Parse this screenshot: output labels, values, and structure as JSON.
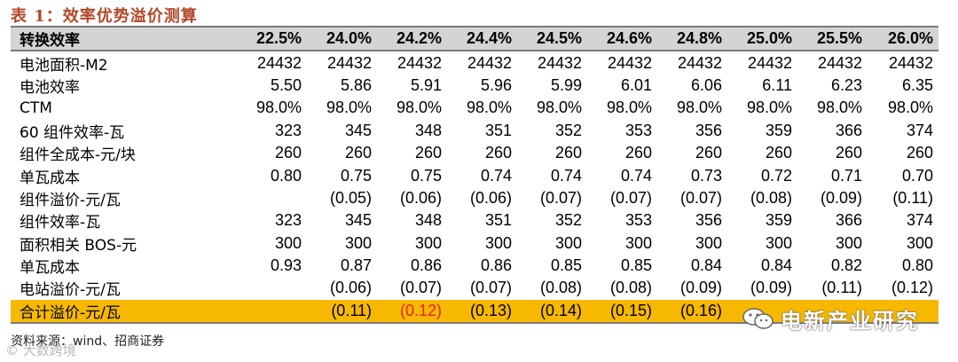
{
  "title": "表 1：效率优势溢价测算",
  "header": {
    "label": "转换效率",
    "columns": [
      "22.5%",
      "24.0%",
      "24.2%",
      "24.4%",
      "24.5%",
      "24.6%",
      "24.8%",
      "25.0%",
      "25.5%",
      "26.0%"
    ]
  },
  "rows": [
    {
      "label": "电池面积-M2",
      "values": [
        "24432",
        "24432",
        "24432",
        "24432",
        "24432",
        "24432",
        "24432",
        "24432",
        "24432",
        "24432"
      ]
    },
    {
      "label": "电池效率",
      "values": [
        "5.50",
        "5.86",
        "5.91",
        "5.96",
        "5.99",
        "6.01",
        "6.06",
        "6.11",
        "6.23",
        "6.35"
      ]
    },
    {
      "label": "CTM",
      "values": [
        "98.0%",
        "98.0%",
        "98.0%",
        "98.0%",
        "98.0%",
        "98.0%",
        "98.0%",
        "98.0%",
        "98.0%",
        "98.0%"
      ]
    },
    {
      "label": "60 组件效率-瓦",
      "values": [
        "323",
        "345",
        "348",
        "351",
        "352",
        "353",
        "356",
        "359",
        "366",
        "374"
      ]
    },
    {
      "label": "组件全成本-元/块",
      "values": [
        "260",
        "260",
        "260",
        "260",
        "260",
        "260",
        "260",
        "260",
        "260",
        "260"
      ]
    },
    {
      "label": "单瓦成本",
      "values": [
        "0.80",
        "0.75",
        "0.75",
        "0.74",
        "0.74",
        "0.74",
        "0.73",
        "0.72",
        "0.71",
        "0.70"
      ]
    },
    {
      "label": "组件溢价-元/瓦",
      "values": [
        "",
        "(0.05)",
        "(0.06)",
        "(0.06)",
        "(0.07)",
        "(0.07)",
        "(0.07)",
        "(0.08)",
        "(0.09)",
        "(0.11)"
      ]
    },
    {
      "label": "组件效率-瓦",
      "values": [
        "323",
        "345",
        "348",
        "351",
        "352",
        "353",
        "356",
        "359",
        "366",
        "374"
      ]
    },
    {
      "label": "面积相关 BOS-元",
      "values": [
        "300",
        "300",
        "300",
        "300",
        "300",
        "300",
        "300",
        "300",
        "300",
        "300"
      ]
    },
    {
      "label": "单瓦成本",
      "values": [
        "0.93",
        "0.87",
        "0.86",
        "0.86",
        "0.85",
        "0.85",
        "0.84",
        "0.84",
        "0.82",
        "0.80"
      ]
    },
    {
      "label": "电站溢价-元/瓦",
      "values": [
        "",
        "(0.06)",
        "(0.07)",
        "(0.07)",
        "(0.08)",
        "(0.08)",
        "(0.09)",
        "(0.09)",
        "(0.11)",
        "(0.12)"
      ]
    }
  ],
  "total": {
    "label": "合计溢价-元/瓦",
    "values": [
      "",
      "(0.11)",
      "(0.12)",
      "(0.13)",
      "(0.14)",
      "(0.15)",
      "(0.16)",
      "",
      "",
      ""
    ],
    "highlight_index": 2,
    "highlight_color": "#e0262b",
    "row_color": "#f7b800"
  },
  "source": "资料来源：wind、招商证券",
  "watermarks": {
    "left": "© 大数跨境",
    "right": "电新产业研究"
  }
}
